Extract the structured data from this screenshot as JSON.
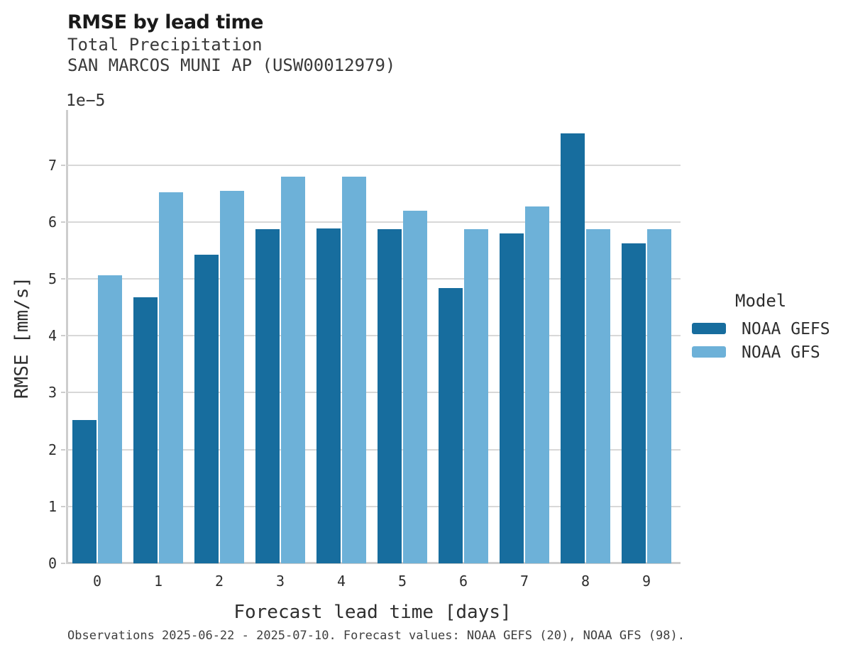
{
  "header": {
    "title": "RMSE by lead time",
    "subtitle_line1": "Total Precipitation",
    "subtitle_line2": "SAN MARCOS MUNI AP (USW00012979)"
  },
  "chart_data": {
    "type": "bar",
    "title": "RMSE by lead time",
    "subtitle": [
      "Total Precipitation",
      "SAN MARCOS MUNI AP (USW00012979)"
    ],
    "categories": [
      "0",
      "1",
      "2",
      "3",
      "4",
      "5",
      "6",
      "7",
      "8",
      "9"
    ],
    "series": [
      {
        "name": "NOAA GEFS",
        "color": "#176d9e",
        "values": [
          2.52,
          4.68,
          5.42,
          5.88,
          5.89,
          5.88,
          4.84,
          5.8,
          7.56,
          5.63
        ]
      },
      {
        "name": "NOAA GFS",
        "color": "#6db1d8",
        "values": [
          5.06,
          6.52,
          6.55,
          6.8,
          6.8,
          6.2,
          5.88,
          6.28,
          5.88,
          5.88
        ]
      }
    ],
    "value_unit_multiplier": "1e-5",
    "offset_label": "1e−5",
    "xlabel": "Forecast lead time [days]",
    "ylabel": "RMSE [mm/s]",
    "yticks": [
      0,
      1,
      2,
      3,
      4,
      5,
      6,
      7
    ],
    "ylim": [
      0,
      7.97
    ],
    "grid": "horizontal",
    "legend_title": "Model",
    "legend_position": "right"
  },
  "footer": {
    "note": "Observations 2025-06-22 - 2025-07-10. Forecast values: NOAA GEFS (20), NOAA GFS (98)."
  },
  "colors": {
    "gefs_bar": "#176d9e",
    "gfs_bar": "#6db1d8",
    "gridline": "#d8d8d8",
    "spine": "#cdcdcd",
    "title_text": "#1a1a1a",
    "subtitle_text": "#3a3a3a",
    "tick_text": "#2e2e2e",
    "footer_text": "#3f3f3f"
  }
}
